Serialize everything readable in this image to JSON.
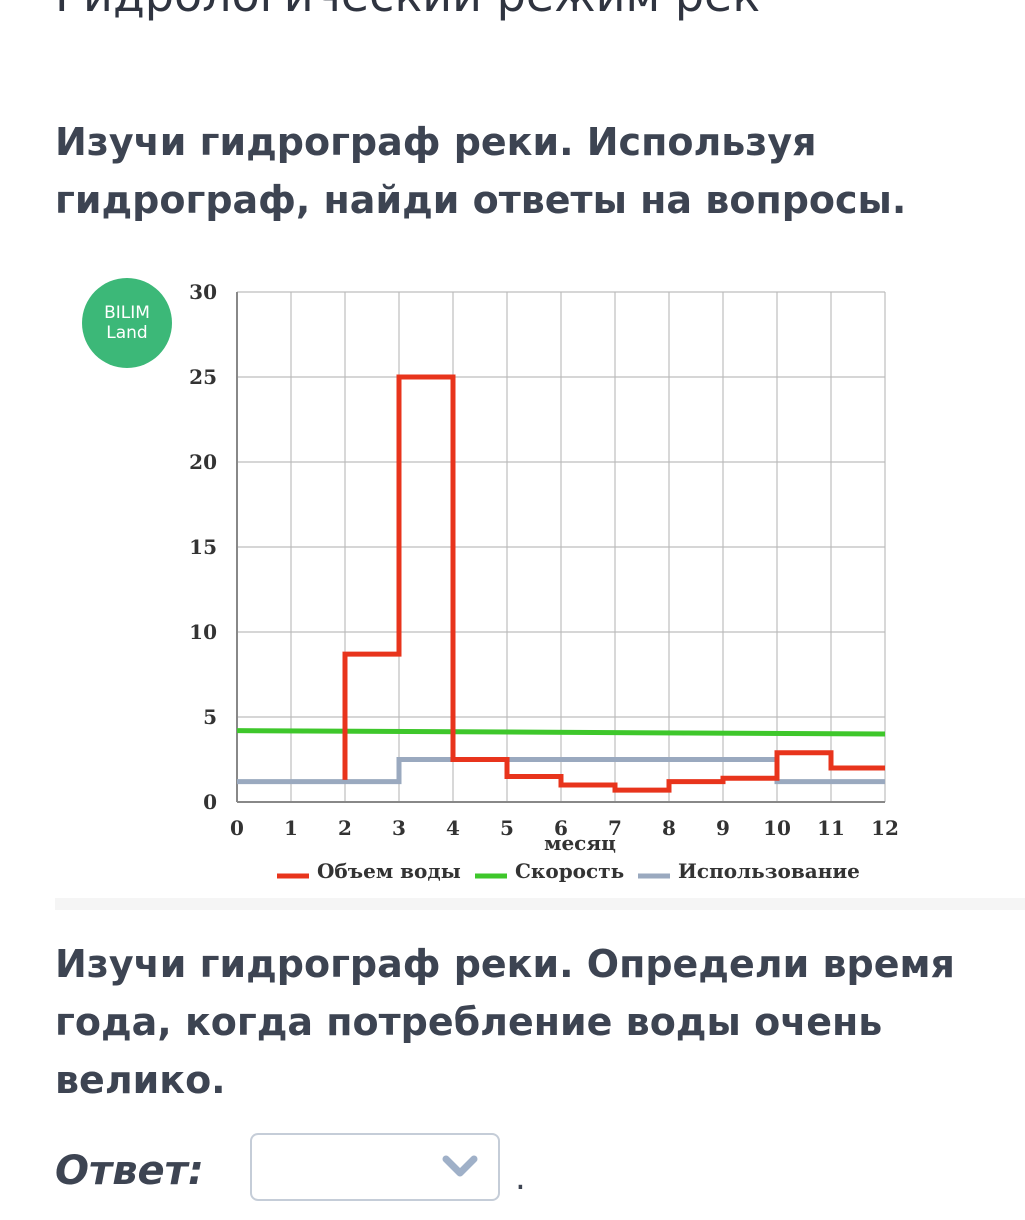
{
  "page": {
    "heading": "Гидрологический режим рек",
    "intro": "Изучи гидрограф реки. Используя гидрограф, найди ответы на вопросы.",
    "question": "Изучи гидрограф реки. Определи время года, когда потребление воды очень велико.",
    "answer_label": "Ответ:",
    "answer_value": "",
    "answer_suffix": "."
  },
  "logo": {
    "line1": "BILIM",
    "line2": "Land",
    "color": "#3cb878"
  },
  "icons": {
    "dropdown": "chevron-down-icon"
  },
  "chart_data": {
    "type": "line",
    "xlabel": "месяц",
    "ylabel": "",
    "xlim": [
      0,
      12
    ],
    "ylim": [
      0,
      30
    ],
    "x_ticks": [
      0,
      1,
      2,
      3,
      4,
      5,
      6,
      7,
      8,
      9,
      10,
      11,
      12
    ],
    "y_ticks": [
      0,
      5,
      10,
      15,
      20,
      25,
      30
    ],
    "grid": true,
    "legend_position": "bottom",
    "series": [
      {
        "name": "Объем воды",
        "color": "#e8341c",
        "step": true,
        "x": [
          2,
          2,
          3,
          3,
          4,
          4,
          5,
          5,
          6,
          6,
          7,
          7,
          8,
          8,
          9,
          9,
          10,
          10,
          11,
          11,
          12
        ],
        "y": [
          1.3,
          8.7,
          8.7,
          25,
          25,
          2.5,
          2.5,
          1.5,
          1.5,
          1,
          1,
          0.7,
          0.7,
          1.2,
          1.2,
          1.4,
          1.4,
          2.9,
          2.9,
          2,
          2
        ]
      },
      {
        "name": "Скорость",
        "color": "#3ec72b",
        "step": false,
        "x": [
          0,
          12
        ],
        "y": [
          4.2,
          4.0
        ]
      },
      {
        "name": "Использование",
        "color": "#9aa9bf",
        "step": true,
        "x": [
          0,
          3,
          3,
          10,
          10,
          12
        ],
        "y": [
          1.2,
          1.2,
          2.5,
          2.5,
          1.2,
          1.2
        ]
      }
    ]
  }
}
